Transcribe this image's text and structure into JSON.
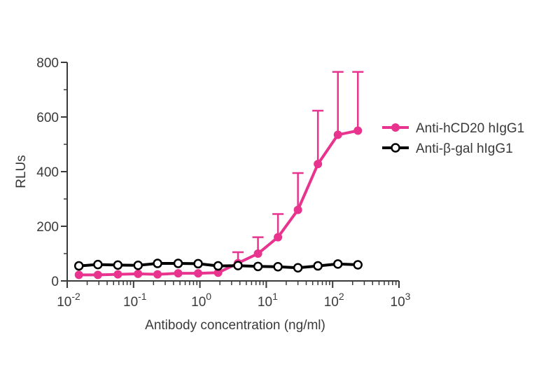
{
  "chart_data": {
    "type": "line",
    "title": "",
    "xlabel": "Antibody concentration (ng/ml)",
    "ylabel": "RLUs",
    "xscale": "log",
    "xlim": [
      0.01,
      1000
    ],
    "ylim": [
      0,
      800
    ],
    "yticks": [
      0,
      200,
      400,
      600,
      800
    ],
    "xticks": [
      {
        "value": 0.01,
        "base": "10",
        "exp": "-2"
      },
      {
        "value": 0.1,
        "base": "10",
        "exp": "-1"
      },
      {
        "value": 1,
        "base": "10",
        "exp": "0"
      },
      {
        "value": 10,
        "base": "10",
        "exp": "1"
      },
      {
        "value": 100,
        "base": "10",
        "exp": "2"
      },
      {
        "value": 1000,
        "base": "10",
        "exp": "3"
      }
    ],
    "legend_position": "right",
    "series": [
      {
        "name": "Anti-hCD20 hIgG1",
        "color": "#e8348f",
        "marker": "filled-circle",
        "x": [
          0.015,
          0.029,
          0.058,
          0.117,
          0.23,
          0.47,
          0.94,
          1.88,
          3.75,
          7.5,
          15,
          30,
          60,
          120,
          240
        ],
        "y": [
          22,
          22,
          24,
          26,
          24,
          28,
          28,
          30,
          65,
          100,
          160,
          260,
          428,
          535,
          550
        ],
        "error": [
          0,
          0,
          0,
          0,
          0,
          0,
          0,
          0,
          40,
          60,
          85,
          135,
          195,
          230,
          215
        ]
      },
      {
        "name": "Anti-β-gal hIgG1",
        "color": "#000000",
        "marker": "open-circle",
        "x": [
          0.015,
          0.029,
          0.058,
          0.117,
          0.23,
          0.47,
          0.94,
          1.88,
          3.75,
          7.5,
          15,
          30,
          60,
          120,
          240
        ],
        "y": [
          55,
          60,
          58,
          57,
          64,
          64,
          63,
          55,
          56,
          53,
          52,
          48,
          55,
          62,
          59
        ],
        "error": []
      }
    ]
  }
}
